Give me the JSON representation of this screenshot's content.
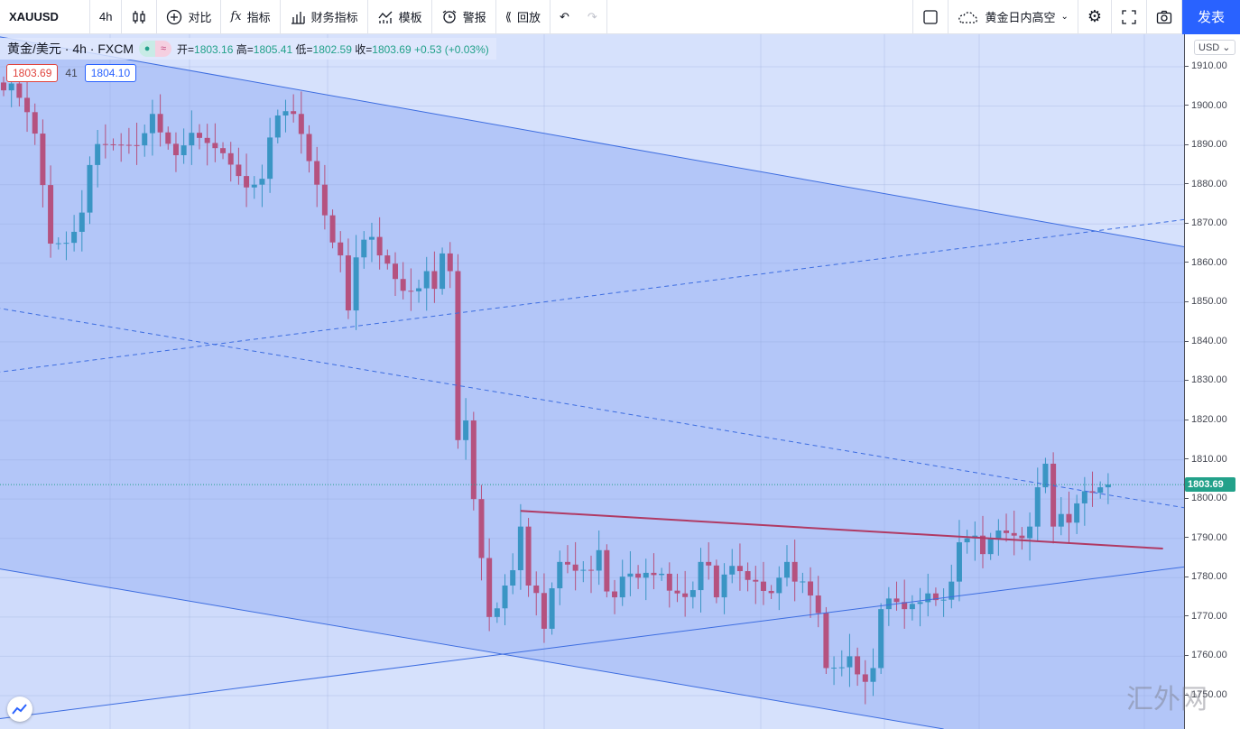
{
  "toolbar": {
    "symbol": "XAUUSD",
    "interval": "4h",
    "compare": "对比",
    "indicators": "指标",
    "financials": "财务指标",
    "templates": "模板",
    "alert": "警报",
    "replay": "回放",
    "layout_name": "黄金日内高空",
    "publish": "发表"
  },
  "legend": {
    "title": "黄金/美元 · 4h · FXCM",
    "open_label": "开=",
    "open": "1803.16",
    "high_label": "高=",
    "high": "1805.41",
    "low_label": "低=",
    "low": "1802.59",
    "close_label": "收=",
    "close": "1803.69",
    "change": "+0.53 (+0.03%)",
    "bid": "1803.69",
    "spread": "41",
    "ask": "1804.10"
  },
  "axis": {
    "currency": "USD",
    "last_price": "1803.69",
    "ticks": [
      "1910.00",
      "1900.00",
      "1890.00",
      "1880.00",
      "1870.00",
      "1860.00",
      "1850.00",
      "1840.00",
      "1830.00",
      "1820.00",
      "1810.00",
      "1800.00",
      "1790.00",
      "1780.00",
      "1770.00",
      "1760.00",
      "1750.00"
    ]
  },
  "watermark": "汇外网",
  "colors": {
    "up": "#3a95c4",
    "down": "#b5527f",
    "channel": "#b3c6f8",
    "bg": "#d6e1fc",
    "line": "#3d6de0",
    "red": "#b03a64",
    "accent": "#2962ff"
  },
  "chart_data": {
    "type": "candlestick",
    "symbol": "XAUUSD",
    "interval": "4h",
    "ylim": [
      1748,
      1916
    ],
    "price_path": [
      [
        0,
        1904
      ],
      [
        4,
        1893
      ],
      [
        6,
        1865
      ],
      [
        9,
        1868
      ],
      [
        11,
        1885
      ],
      [
        17,
        1890
      ],
      [
        19,
        1898
      ],
      [
        23,
        1890
      ],
      [
        28,
        1888
      ],
      [
        32,
        1880
      ],
      [
        34,
        1892
      ],
      [
        37,
        1898
      ],
      [
        40,
        1880
      ],
      [
        43,
        1862
      ],
      [
        44,
        1848
      ],
      [
        46,
        1866
      ],
      [
        48,
        1862
      ],
      [
        51,
        1853
      ],
      [
        54,
        1858
      ],
      [
        57,
        1858
      ],
      [
        58,
        1815
      ],
      [
        59,
        1820
      ],
      [
        60,
        1800
      ],
      [
        62,
        1770
      ],
      [
        64,
        1778
      ],
      [
        66,
        1793
      ],
      [
        67,
        1778
      ],
      [
        69,
        1767
      ],
      [
        71,
        1784
      ],
      [
        74,
        1782
      ],
      [
        76,
        1787
      ],
      [
        78,
        1775
      ],
      [
        81,
        1780
      ],
      [
        84,
        1781
      ],
      [
        86,
        1776
      ],
      [
        89,
        1784
      ],
      [
        91,
        1775
      ],
      [
        93,
        1783
      ],
      [
        96,
        1779
      ],
      [
        99,
        1780
      ],
      [
        101,
        1779
      ],
      [
        104,
        1771
      ],
      [
        105,
        1757
      ],
      [
        108,
        1760
      ],
      [
        111,
        1757
      ],
      [
        112,
        1772
      ],
      [
        115,
        1772
      ],
      [
        118,
        1776
      ],
      [
        121,
        1779
      ],
      [
        123,
        1790
      ],
      [
        125,
        1786
      ],
      [
        127,
        1792
      ],
      [
        131,
        1793
      ],
      [
        132,
        1803
      ],
      [
        133,
        1809
      ],
      [
        134,
        1793
      ],
      [
        136,
        1794
      ],
      [
        138,
        1802
      ],
      [
        140,
        1803
      ],
      [
        141,
        1803.69
      ]
    ],
    "drawings": [
      {
        "name": "channel-upper",
        "style": "solid",
        "p1": [
          -1,
          1917.8
        ],
        "p2": [
          151,
          1864.1
        ]
      },
      {
        "name": "channel-lower",
        "style": "solid",
        "p1": [
          -1,
          1782.4
        ],
        "p2": [
          120,
          1741.5
        ]
      },
      {
        "name": "rising-support",
        "style": "solid",
        "p1": [
          -1,
          1744
        ],
        "p2": [
          151,
          1782.8
        ]
      },
      {
        "name": "dashed-rising",
        "style": "dashed",
        "p1": [
          -1,
          1832.2
        ],
        "p2": [
          151,
          1871.2
        ]
      },
      {
        "name": "dashed-falling",
        "style": "dashed",
        "p1": [
          -1,
          1848.7
        ],
        "p2": [
          151,
          1797.7
        ]
      },
      {
        "name": "red-resistance",
        "style": "red",
        "p1": [
          66,
          1797
        ],
        "p2": [
          148,
          1787.4
        ]
      }
    ]
  }
}
